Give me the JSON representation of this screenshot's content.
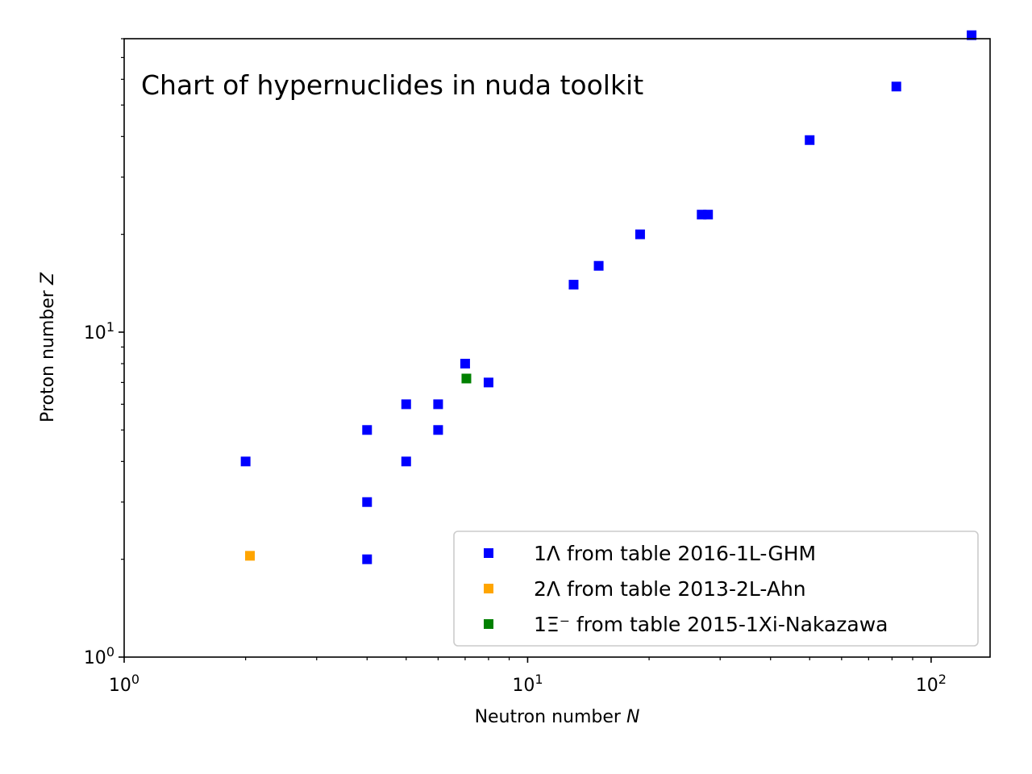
{
  "chart_data": {
    "type": "scatter",
    "title": "Chart of hypernuclides in nuda toolkit",
    "xlabel": "Neutron number",
    "xlabel_var": "N",
    "ylabel": "Proton number",
    "ylabel_var": "Z",
    "x_scale": "log",
    "y_scale": "log",
    "xlim": [
      1,
      140
    ],
    "ylim": [
      1,
      80
    ],
    "grid": false,
    "legend_position": "bottom-right",
    "x_ticks": [
      {
        "value": 1,
        "base": "10",
        "exp": "0"
      },
      {
        "value": 10,
        "base": "10",
        "exp": "1"
      },
      {
        "value": 100,
        "base": "10",
        "exp": "2"
      }
    ],
    "y_ticks": [
      {
        "value": 1,
        "base": "10",
        "exp": "0"
      },
      {
        "value": 10,
        "base": "10",
        "exp": "1"
      }
    ],
    "series": [
      {
        "name": "1Λ from table 2016-1L-GHM",
        "color": "#0000ff",
        "x": [
          2,
          4,
          4,
          4,
          5,
          5,
          6,
          6,
          7,
          8,
          13,
          15,
          19,
          27,
          28,
          50,
          82,
          126
        ],
        "y": [
          4,
          2,
          3,
          5,
          4,
          6,
          5,
          6,
          8,
          7,
          14,
          16,
          20,
          23,
          23,
          39,
          57,
          82
        ]
      },
      {
        "name": "2Λ from table 2013-2L-Ahn",
        "color": "#ffa500",
        "x": [
          2.05
        ],
        "y": [
          2.05
        ]
      },
      {
        "name": "1Ξ⁻ from table 2015-1Xi-Nakazawa",
        "color": "#008000",
        "x": [
          7.05
        ],
        "y": [
          7.2
        ]
      }
    ]
  }
}
